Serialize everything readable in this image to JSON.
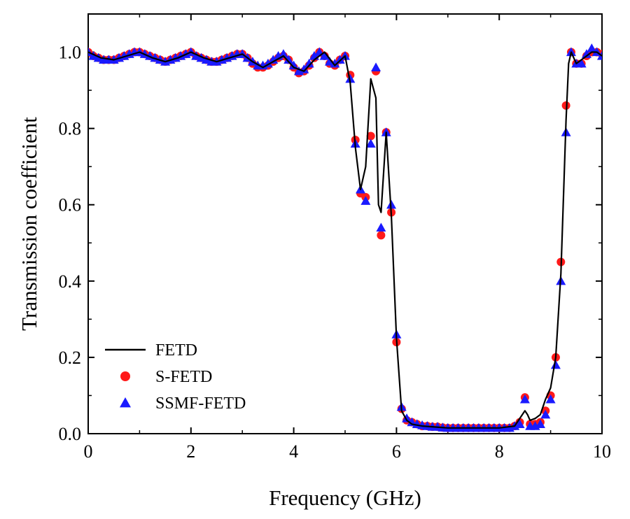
{
  "chart_data": {
    "type": "line",
    "title": "",
    "xlabel": "Frequency (GHz)",
    "ylabel": "Transmission coefficient",
    "xlim": [
      0,
      10
    ],
    "ylim": [
      0,
      1.1
    ],
    "xticks": [
      0,
      2,
      4,
      6,
      8,
      10
    ],
    "xtick_labels": [
      "0",
      "2",
      "4",
      "6",
      "8",
      "10"
    ],
    "yticks": [
      0.0,
      0.2,
      0.4,
      0.6,
      0.8,
      1.0
    ],
    "ytick_labels": [
      "0.0",
      "0.2",
      "0.4",
      "0.6",
      "0.8",
      "1.0"
    ],
    "grid": false,
    "legend_position": "bottom-left",
    "series": [
      {
        "name": "FETD",
        "style": "line",
        "color": "#000000",
        "x": [
          0,
          0.25,
          0.5,
          0.75,
          1.0,
          1.25,
          1.5,
          1.75,
          2.0,
          2.25,
          2.5,
          2.75,
          3.0,
          3.2,
          3.4,
          3.6,
          3.8,
          4.0,
          4.2,
          4.4,
          4.6,
          4.8,
          5.0,
          5.1,
          5.2,
          5.3,
          5.4,
          5.5,
          5.6,
          5.65,
          5.7,
          5.8,
          5.9,
          6.0,
          6.1,
          6.2,
          6.3,
          6.5,
          7.0,
          7.5,
          8.0,
          8.3,
          8.45,
          8.5,
          8.55,
          8.6,
          8.7,
          8.8,
          8.9,
          9.0,
          9.1,
          9.2,
          9.3,
          9.35,
          9.4,
          9.5,
          9.6,
          9.7,
          9.8,
          9.9,
          10.0
        ],
        "y": [
          1.0,
          0.985,
          0.98,
          0.99,
          1.0,
          0.985,
          0.975,
          0.985,
          1.0,
          0.985,
          0.975,
          0.985,
          0.995,
          0.975,
          0.96,
          0.975,
          0.99,
          0.96,
          0.95,
          0.98,
          1.0,
          0.965,
          0.99,
          0.92,
          0.75,
          0.64,
          0.7,
          0.93,
          0.88,
          0.6,
          0.58,
          0.79,
          0.57,
          0.25,
          0.06,
          0.035,
          0.025,
          0.02,
          0.015,
          0.015,
          0.015,
          0.02,
          0.05,
          0.06,
          0.05,
          0.035,
          0.04,
          0.05,
          0.09,
          0.12,
          0.2,
          0.42,
          0.82,
          0.97,
          1.0,
          0.97,
          0.98,
          0.99,
          1.0,
          1.0,
          0.99
        ]
      },
      {
        "name": "S-FETD",
        "style": "circle",
        "color": "#ff1a1a",
        "x": [
          0,
          0.1,
          0.2,
          0.3,
          0.4,
          0.5,
          0.6,
          0.7,
          0.8,
          0.9,
          1.0,
          1.1,
          1.2,
          1.3,
          1.4,
          1.5,
          1.6,
          1.7,
          1.8,
          1.9,
          2.0,
          2.1,
          2.2,
          2.3,
          2.4,
          2.5,
          2.6,
          2.7,
          2.8,
          2.9,
          3.0,
          3.1,
          3.2,
          3.3,
          3.4,
          3.5,
          3.6,
          3.7,
          3.8,
          3.9,
          4.0,
          4.1,
          4.2,
          4.3,
          4.4,
          4.5,
          4.6,
          4.7,
          4.8,
          4.9,
          5.0,
          5.1,
          5.2,
          5.3,
          5.4,
          5.5,
          5.6,
          5.7,
          5.8,
          5.9,
          6.0,
          6.1,
          6.2,
          6.3,
          6.4,
          6.5,
          6.6,
          6.7,
          6.8,
          6.9,
          7.0,
          7.1,
          7.2,
          7.3,
          7.4,
          7.5,
          7.6,
          7.7,
          7.8,
          7.9,
          8.0,
          8.1,
          8.2,
          8.3,
          8.4,
          8.5,
          8.6,
          8.7,
          8.8,
          8.9,
          9.0,
          9.1,
          9.2,
          9.3,
          9.4,
          9.5,
          9.6,
          9.7,
          9.8,
          9.9,
          10.0
        ],
        "y": [
          1.0,
          0.99,
          0.985,
          0.98,
          0.98,
          0.98,
          0.985,
          0.99,
          0.995,
          1.0,
          1.0,
          0.995,
          0.99,
          0.985,
          0.98,
          0.975,
          0.98,
          0.985,
          0.99,
          0.995,
          1.0,
          0.99,
          0.985,
          0.98,
          0.975,
          0.975,
          0.98,
          0.985,
          0.99,
          0.995,
          0.995,
          0.985,
          0.97,
          0.96,
          0.96,
          0.965,
          0.975,
          0.985,
          0.99,
          0.98,
          0.96,
          0.945,
          0.95,
          0.965,
          0.985,
          1.0,
          0.99,
          0.97,
          0.965,
          0.98,
          0.99,
          0.94,
          0.77,
          0.63,
          0.62,
          0.78,
          0.95,
          0.52,
          0.79,
          0.58,
          0.24,
          0.065,
          0.035,
          0.03,
          0.025,
          0.02,
          0.02,
          0.018,
          0.018,
          0.016,
          0.015,
          0.015,
          0.015,
          0.015,
          0.015,
          0.015,
          0.015,
          0.015,
          0.015,
          0.015,
          0.015,
          0.015,
          0.015,
          0.02,
          0.03,
          0.095,
          0.025,
          0.025,
          0.03,
          0.06,
          0.1,
          0.2,
          0.45,
          0.86,
          1.0,
          0.97,
          0.97,
          0.99,
          1.0,
          1.0,
          0.995
        ]
      },
      {
        "name": "SSMF-FETD",
        "style": "triangle",
        "color": "#1a1aff",
        "x": [
          0,
          0.1,
          0.2,
          0.3,
          0.4,
          0.5,
          0.6,
          0.7,
          0.8,
          0.9,
          1.0,
          1.1,
          1.2,
          1.3,
          1.4,
          1.5,
          1.6,
          1.7,
          1.8,
          1.9,
          2.0,
          2.1,
          2.2,
          2.3,
          2.4,
          2.5,
          2.6,
          2.7,
          2.8,
          2.9,
          3.0,
          3.1,
          3.2,
          3.3,
          3.4,
          3.5,
          3.6,
          3.7,
          3.8,
          3.9,
          4.0,
          4.1,
          4.2,
          4.3,
          4.4,
          4.5,
          4.6,
          4.7,
          4.8,
          4.9,
          5.0,
          5.1,
          5.2,
          5.3,
          5.4,
          5.5,
          5.6,
          5.7,
          5.8,
          5.9,
          6.0,
          6.1,
          6.2,
          6.3,
          6.4,
          6.5,
          6.6,
          6.7,
          6.8,
          6.9,
          7.0,
          7.1,
          7.2,
          7.3,
          7.4,
          7.5,
          7.6,
          7.7,
          7.8,
          7.9,
          8.0,
          8.1,
          8.2,
          8.3,
          8.4,
          8.5,
          8.6,
          8.7,
          8.8,
          8.9,
          9.0,
          9.1,
          9.2,
          9.3,
          9.4,
          9.5,
          9.6,
          9.7,
          9.8,
          9.9,
          10.0
        ],
        "y": [
          1.0,
          0.99,
          0.985,
          0.98,
          0.98,
          0.98,
          0.985,
          0.99,
          0.995,
          1.0,
          1.0,
          0.995,
          0.99,
          0.985,
          0.98,
          0.975,
          0.98,
          0.985,
          0.99,
          0.995,
          1.0,
          0.99,
          0.985,
          0.98,
          0.975,
          0.975,
          0.98,
          0.985,
          0.99,
          0.995,
          0.995,
          0.985,
          0.975,
          0.965,
          0.965,
          0.97,
          0.98,
          0.99,
          0.995,
          0.98,
          0.965,
          0.95,
          0.955,
          0.97,
          0.99,
          1.0,
          0.99,
          0.975,
          0.97,
          0.98,
          0.99,
          0.93,
          0.76,
          0.64,
          0.61,
          0.76,
          0.96,
          0.54,
          0.79,
          0.6,
          0.26,
          0.07,
          0.04,
          0.03,
          0.025,
          0.022,
          0.02,
          0.018,
          0.018,
          0.016,
          0.015,
          0.015,
          0.015,
          0.015,
          0.015,
          0.015,
          0.015,
          0.015,
          0.015,
          0.015,
          0.015,
          0.015,
          0.015,
          0.02,
          0.025,
          0.09,
          0.02,
          0.02,
          0.025,
          0.05,
          0.09,
          0.18,
          0.4,
          0.79,
          1.0,
          0.97,
          0.97,
          0.995,
          1.01,
          1.0,
          0.99
        ]
      }
    ]
  }
}
